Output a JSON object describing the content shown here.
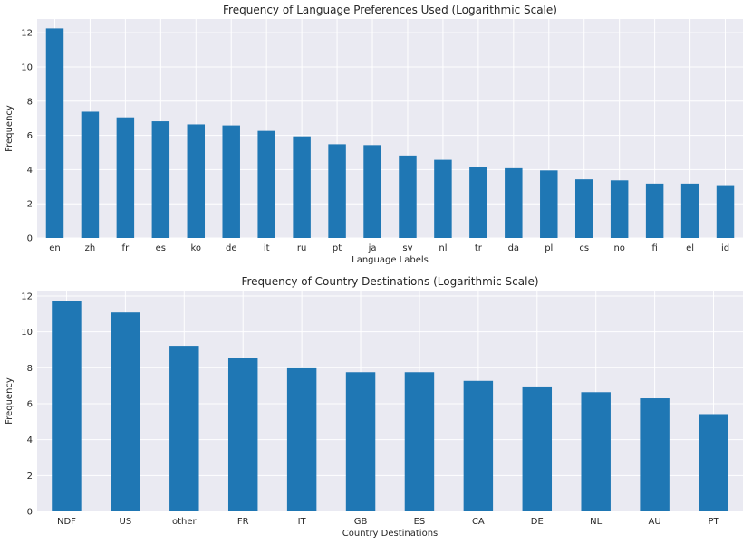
{
  "chart_data": [
    {
      "type": "bar",
      "title": "Frequency of Language Preferences Used (Logarithmic Scale)",
      "xlabel": "Language Labels",
      "ylabel": "Frequency",
      "ylim": [
        0,
        12.8
      ],
      "yticks": [
        "0",
        "2",
        "4",
        "6",
        "8",
        "10",
        "12"
      ],
      "grid": true,
      "legend": "none",
      "bar_color": "#1f77b4",
      "background_color": "#eaeaf2",
      "categories": [
        "en",
        "zh",
        "fr",
        "es",
        "ko",
        "de",
        "it",
        "ru",
        "pt",
        "ja",
        "sv",
        "nl",
        "tr",
        "da",
        "pl",
        "cs",
        "no",
        "fi",
        "el",
        "id"
      ],
      "values": [
        12.25,
        7.38,
        7.05,
        6.82,
        6.64,
        6.58,
        6.26,
        5.94,
        5.48,
        5.43,
        4.82,
        4.57,
        4.13,
        4.08,
        3.95,
        3.43,
        3.37,
        3.18,
        3.18,
        3.09
      ]
    },
    {
      "type": "bar",
      "title": "Frequency of Country Destinations (Logarithmic Scale)",
      "xlabel": "Country Destinations",
      "ylabel": "Frequency",
      "ylim": [
        0,
        12.3
      ],
      "yticks": [
        "0",
        "2",
        "4",
        "6",
        "8",
        "10",
        "12"
      ],
      "grid": true,
      "legend": "none",
      "bar_color": "#1f77b4",
      "background_color": "#eaeaf2",
      "categories": [
        "NDF",
        "US",
        "other",
        "FR",
        "IT",
        "GB",
        "ES",
        "CA",
        "DE",
        "NL",
        "AU",
        "PT"
      ],
      "values": [
        11.72,
        11.08,
        9.22,
        8.52,
        7.97,
        7.75,
        7.75,
        7.27,
        6.96,
        6.64,
        6.3,
        5.42
      ]
    }
  ]
}
